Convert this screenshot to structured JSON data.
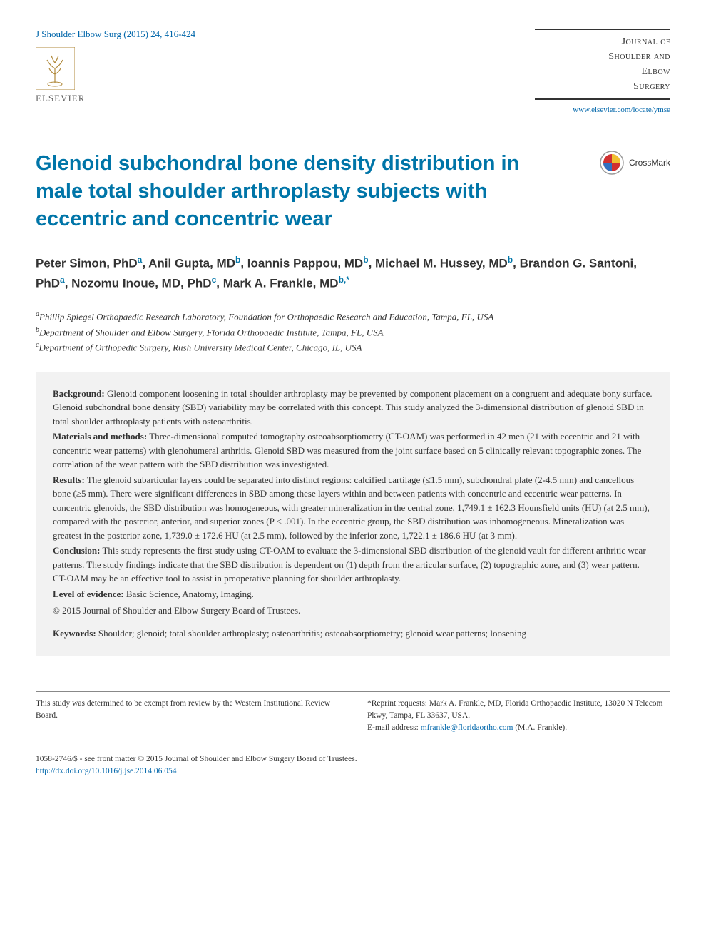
{
  "citation": "J Shoulder Elbow Surg (2015) 24, 416-424",
  "journal_lines": [
    "Journal of",
    "Shoulder and",
    "Elbow",
    "Surgery"
  ],
  "journal_url": "www.elsevier.com/locate/ymse",
  "publisher_name": "ELSEVIER",
  "crossmark_label": "CrossMark",
  "title": "Glenoid subchondral bone density distribution in male total shoulder arthroplasty subjects with eccentric and concentric wear",
  "authors_html": "Peter Simon, PhD<sup>a</sup>, Anil Gupta, MD<sup>b</sup>, Ioannis Pappou, MD<sup>b</sup>, Michael M. Hussey, MD<sup>b</sup>, Brandon G. Santoni, PhD<sup>a</sup>, Nozomu Inoue, MD, PhD<sup>c</sup>, Mark A. Frankle, MD<sup>b,*</sup>",
  "affiliations": [
    {
      "label": "a",
      "text": "Phillip Spiegel Orthopaedic Research Laboratory, Foundation for Orthopaedic Research and Education, Tampa, FL, USA"
    },
    {
      "label": "b",
      "text": "Department of Shoulder and Elbow Surgery, Florida Orthopaedic Institute, Tampa, FL, USA"
    },
    {
      "label": "c",
      "text": "Department of Orthopedic Surgery, Rush University Medical Center, Chicago, IL, USA"
    }
  ],
  "abstract": {
    "background": {
      "label": "Background:",
      "text": " Glenoid component loosening in total shoulder arthroplasty may be prevented by component placement on a congruent and adequate bony surface. Glenoid subchondral bone density (SBD) variability may be correlated with this concept. This study analyzed the 3-dimensional distribution of glenoid SBD in total shoulder arthroplasty patients with osteoarthritis."
    },
    "methods": {
      "label": "Materials and methods:",
      "text": " Three-dimensional computed tomography osteoabsorptiometry (CT-OAM) was performed in 42 men (21 with eccentric and 21 with concentric wear patterns) with glenohumeral arthritis. Glenoid SBD was measured from the joint surface based on 5 clinically relevant topographic zones. The correlation of the wear pattern with the SBD distribution was investigated."
    },
    "results": {
      "label": "Results:",
      "text": " The glenoid subarticular layers could be separated into distinct regions: calcified cartilage (≤1.5 mm), subchondral plate (2-4.5 mm) and cancellous bone (≥5 mm). There were significant differences in SBD among these layers within and between patients with concentric and eccentric wear patterns. In concentric glenoids, the SBD distribution was homogeneous, with greater mineralization in the central zone, 1,749.1 ± 162.3 Hounsfield units (HU) (at 2.5 mm), compared with the posterior, anterior, and superior zones (P < .001). In the eccentric group, the SBD distribution was inhomogeneous. Mineralization was greatest in the posterior zone, 1,739.0 ± 172.6 HU (at 2.5 mm), followed by the inferior zone, 1,722.1 ± 186.6 HU (at 3 mm)."
    },
    "conclusion": {
      "label": "Conclusion:",
      "text": " This study represents the first study using CT-OAM to evaluate the 3-dimensional SBD distribution of the glenoid vault for different arthritic wear patterns. The study findings indicate that the SBD distribution is dependent on (1) depth from the articular surface, (2) topographic zone, and (3) wear pattern. CT-OAM may be an effective tool to assist in preoperative planning for shoulder arthroplasty."
    },
    "level": {
      "label": "Level of evidence:",
      "text": " Basic Science, Anatomy, Imaging."
    },
    "copyright": "© 2015 Journal of Shoulder and Elbow Surgery Board of Trustees.",
    "keywords": {
      "label": "Keywords:",
      "text": " Shoulder; glenoid; total shoulder arthroplasty; osteoarthritis; osteoabsorptiometry; glenoid wear patterns; loosening"
    }
  },
  "footer": {
    "irb": "This study was determined to be exempt from review by the Western Institutional Review Board.",
    "reprint_label": "*Reprint requests: ",
    "reprint": "Mark A. Frankle, MD, Florida Orthopaedic Institute, 13020 N Telecom Pkwy, Tampa, FL 33637, USA.",
    "email_label": "E-mail address: ",
    "email": "mfrankle@floridaortho.com",
    "email_suffix": " (M.A. Frankle)."
  },
  "bottom": {
    "issn": "1058-2746/$ - see front matter © 2015 Journal of Shoulder and Elbow Surgery Board of Trustees.",
    "doi": "http://dx.doi.org/10.1016/j.jse.2014.06.054"
  },
  "colors": {
    "link": "#0066aa",
    "title": "#0075a8",
    "abstract_bg": "#f2f2f2"
  }
}
